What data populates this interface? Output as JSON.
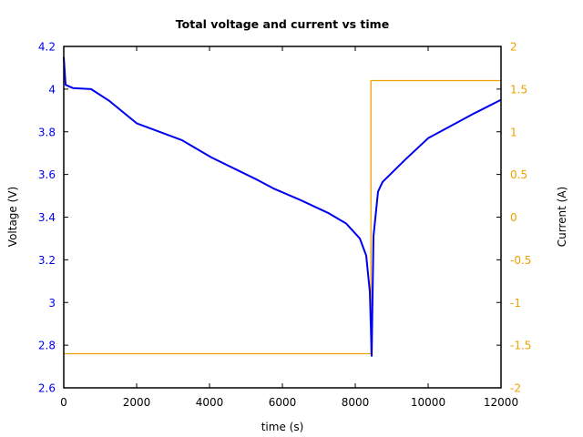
{
  "chart_data": {
    "type": "line",
    "title": "Total voltage and current vs time",
    "xlabel": "time (s)",
    "ylabel": "Voltage (V)",
    "y2label": "Current (A)",
    "xlim": [
      0,
      12000
    ],
    "ylim": [
      2.6,
      4.2
    ],
    "y2lim": [
      -2,
      2
    ],
    "grid": false,
    "legend": null,
    "x_ticks": [
      0,
      2000,
      4000,
      6000,
      8000,
      10000,
      12000
    ],
    "y_ticks": [
      2.6,
      2.8,
      3,
      3.2,
      3.4,
      3.6,
      3.8,
      4,
      4.2
    ],
    "y2_ticks": [
      -2,
      -1.5,
      -1,
      -0.5,
      0,
      0.5,
      1,
      1.5,
      2
    ],
    "x_tick_labels": [
      "0",
      "2000",
      "4000",
      "6000",
      "8000",
      "10000",
      "12000"
    ],
    "y_tick_labels": [
      "2.6",
      "2.8",
      "3",
      "3.2",
      "3.4",
      "3.6",
      "3.8",
      "4",
      "4.2"
    ],
    "y2_tick_labels": [
      "-2",
      "-1.5",
      "-1",
      "-0.5",
      "0",
      "0.5",
      "1",
      "1.5",
      "2"
    ],
    "colors": {
      "voltage": "#0000ee",
      "current": "#f0a000",
      "axis": "#000000"
    },
    "series": [
      {
        "name": "Voltage",
        "axis": "left",
        "color": "#0000ee",
        "x": [
          0,
          50,
          250,
          750,
          1250,
          2000,
          3250,
          4050,
          5250,
          5750,
          6500,
          7250,
          7750,
          8125,
          8300,
          8400,
          8450,
          8500,
          8625,
          8750,
          9375,
          10000,
          11250,
          12000
        ],
        "y": [
          4.15,
          4.02,
          4.005,
          4.0,
          3.945,
          3.84,
          3.76,
          3.68,
          3.58,
          3.535,
          3.48,
          3.42,
          3.37,
          3.3,
          3.22,
          3.05,
          2.75,
          3.31,
          3.52,
          3.565,
          3.67,
          3.77,
          3.885,
          3.95
        ]
      },
      {
        "name": "Current",
        "axis": "right",
        "color": "#f0a000",
        "x": [
          0,
          8430,
          8430,
          12000
        ],
        "y": [
          -1.6,
          -1.6,
          1.6,
          1.6
        ]
      }
    ]
  }
}
